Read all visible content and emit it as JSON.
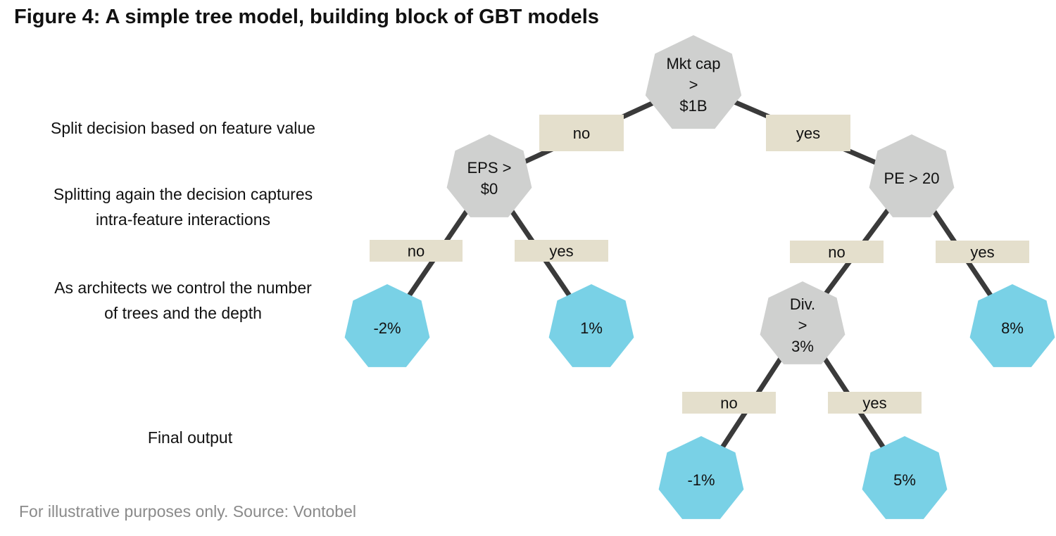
{
  "title": "Figure 4: A simple tree model, building block of GBT models",
  "annotations": [
    {
      "id": "split",
      "lines": [
        "Split decision based on feature value"
      ]
    },
    {
      "id": "splitting-again",
      "lines": [
        "Splitting again the decision captures",
        "intra-feature interactions"
      ]
    },
    {
      "id": "architects",
      "lines": [
        "As architects we control the number",
        "of trees and the depth"
      ]
    },
    {
      "id": "final-output",
      "lines": [
        "Final output"
      ]
    }
  ],
  "source": "For illustrative purposes only. Source: Vontobel",
  "colors": {
    "decision_node": "#cfd0cf",
    "leaf_node": "#79d1e6",
    "edge_label_bg": "#e4dfcc",
    "edge": "#3a3a3a"
  },
  "tree": {
    "nodes": [
      {
        "id": "mktcap",
        "kind": "decision",
        "lines": [
          "Mkt cap",
          ">",
          "$1B"
        ]
      },
      {
        "id": "eps",
        "kind": "decision",
        "lines": [
          "EPS >",
          "$0"
        ]
      },
      {
        "id": "pe",
        "kind": "decision",
        "lines": [
          "PE > 20"
        ]
      },
      {
        "id": "div",
        "kind": "decision",
        "lines": [
          "Div.",
          ">",
          "3%"
        ]
      },
      {
        "id": "leaf-eps-no",
        "kind": "leaf",
        "lines": [
          "-2%"
        ]
      },
      {
        "id": "leaf-eps-yes",
        "kind": "leaf",
        "lines": [
          "1%"
        ]
      },
      {
        "id": "leaf-pe-yes",
        "kind": "leaf",
        "lines": [
          "8%"
        ]
      },
      {
        "id": "leaf-div-no",
        "kind": "leaf",
        "lines": [
          "-1%"
        ]
      },
      {
        "id": "leaf-div-yes",
        "kind": "leaf",
        "lines": [
          "5%"
        ]
      }
    ],
    "edges": [
      {
        "from": "mktcap",
        "to": "eps",
        "label": "no"
      },
      {
        "from": "mktcap",
        "to": "pe",
        "label": "yes"
      },
      {
        "from": "eps",
        "to": "leaf-eps-no",
        "label": "no"
      },
      {
        "from": "eps",
        "to": "leaf-eps-yes",
        "label": "yes"
      },
      {
        "from": "pe",
        "to": "div",
        "label": "no"
      },
      {
        "from": "pe",
        "to": "leaf-pe-yes",
        "label": "yes"
      },
      {
        "from": "div",
        "to": "leaf-div-no",
        "label": "no"
      },
      {
        "from": "div",
        "to": "leaf-div-yes",
        "label": "yes"
      }
    ]
  }
}
